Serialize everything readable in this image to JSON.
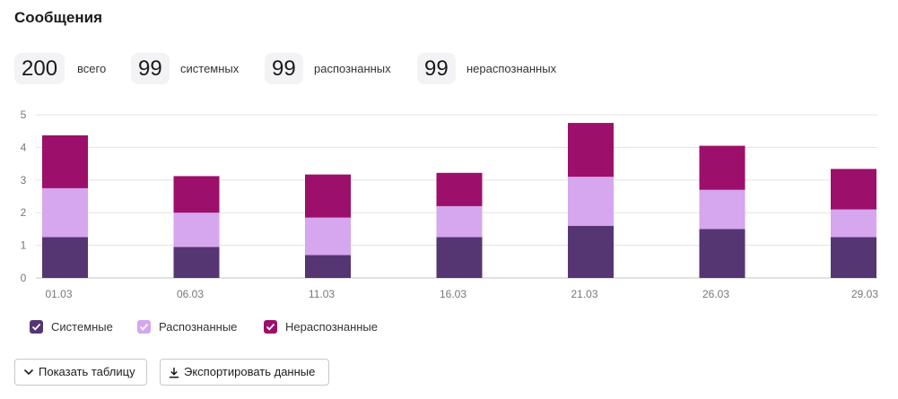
{
  "title": "Сообщения",
  "stats": [
    {
      "value": "200",
      "label": "всего"
    },
    {
      "value": "99",
      "label": "системных"
    },
    {
      "value": "99",
      "label": "распознанных"
    },
    {
      "value": "99",
      "label": "нераспознанных"
    }
  ],
  "legend": [
    {
      "label": "Системные",
      "color": "#553672"
    },
    {
      "label": "Распознанные",
      "color": "#d6a6ee"
    },
    {
      "label": "Нераспознанные",
      "color": "#9c0f6b"
    }
  ],
  "buttons": {
    "show_table": "Показать таблицу",
    "export": "Экспортировать данные"
  },
  "icons": {
    "show_table": "chevron-down-icon",
    "export": "download-icon",
    "legend_check": "check-icon"
  },
  "chart_data": {
    "type": "bar",
    "stacked": true,
    "categories": [
      "01.03",
      "06.03",
      "11.03",
      "16.03",
      "21.03",
      "26.03",
      "29.03"
    ],
    "series": [
      {
        "name": "Системные",
        "color": "#553672",
        "values": [
          1.25,
          0.95,
          0.7,
          1.25,
          1.6,
          1.5,
          1.25
        ]
      },
      {
        "name": "Распознанные",
        "color": "#d6a6ee",
        "values": [
          1.5,
          1.05,
          1.15,
          0.95,
          1.5,
          1.2,
          0.85
        ]
      },
      {
        "name": "Нераспознанные",
        "color": "#9c0f6b",
        "values": [
          1.62,
          1.12,
          1.32,
          1.02,
          1.65,
          1.35,
          1.24
        ]
      }
    ],
    "ylim": [
      0,
      5
    ],
    "yticks": [
      0,
      1,
      2,
      3,
      4,
      5
    ],
    "grid": true,
    "legend_position": "bottom-left",
    "xlabel": "",
    "ylabel": ""
  }
}
